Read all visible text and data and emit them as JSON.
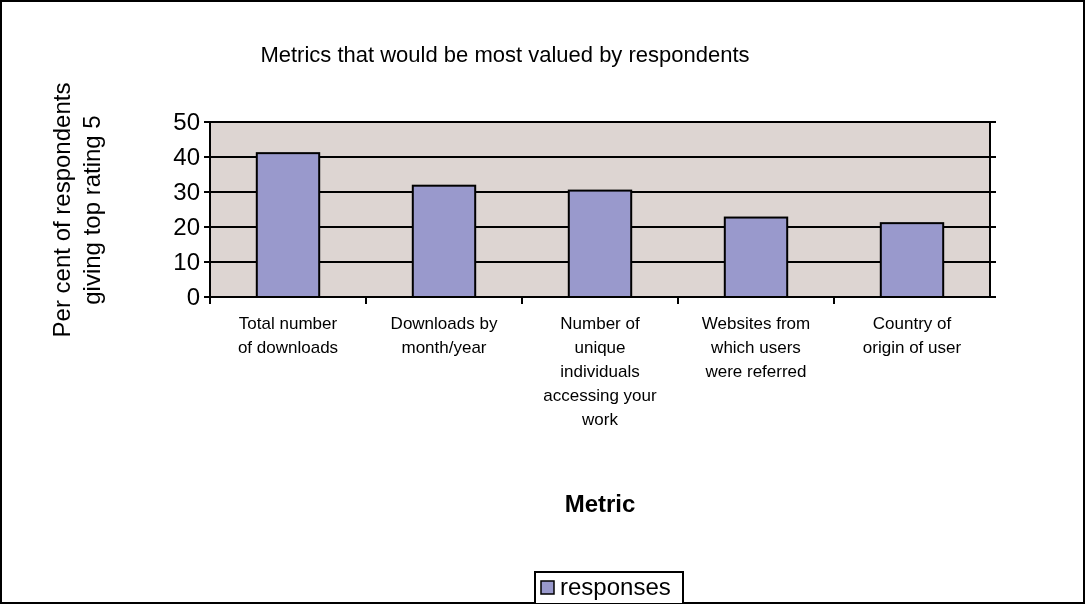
{
  "chart_data": {
    "type": "bar",
    "title": "Metrics that would be most valued by respondents",
    "xlabel": "Metric",
    "ylabel": "Per cent of respondents giving top rating 5",
    "categories": [
      "Total number of downloads",
      "Downloads by month/year",
      "Number of unique individuals accessing your work",
      "Websites from which users were referred",
      "Country of origin of user"
    ],
    "series": [
      {
        "name": "responses",
        "color": "#9999cc",
        "values": [
          41.1,
          31.8,
          30.4,
          22.7,
          21.1
        ]
      }
    ],
    "ylim": [
      0,
      50
    ],
    "yticks": [
      0,
      10,
      20,
      30,
      40,
      50
    ],
    "grid": "y",
    "legend": "bottom"
  }
}
